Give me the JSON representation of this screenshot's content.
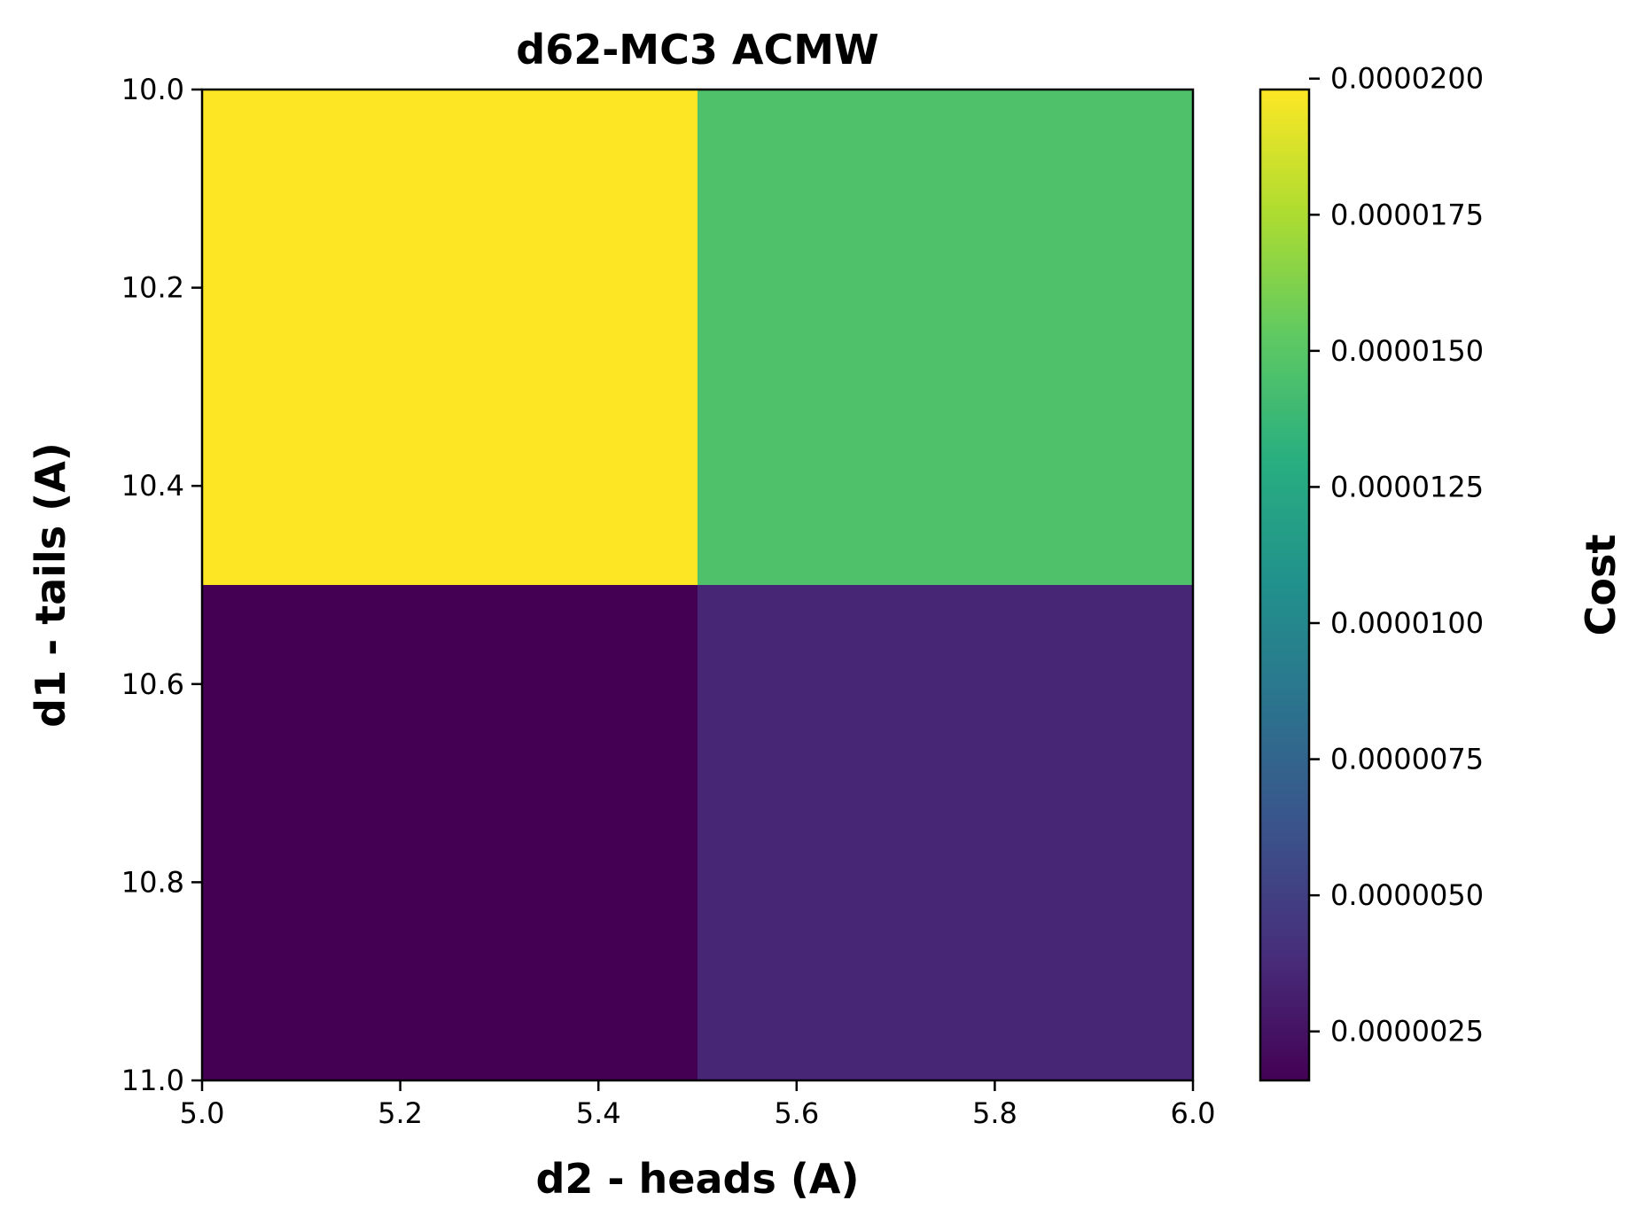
{
  "chart_data": {
    "type": "heatmap",
    "title": "d62-MC3 ACMW",
    "xlabel": "d2 - heads (A)",
    "ylabel": "d1 - tails (A)",
    "xlim": [
      5.0,
      6.0
    ],
    "ylim": [
      10.0,
      11.0
    ],
    "y_inverted": true,
    "x_ticks": [
      "5.0",
      "5.2",
      "5.4",
      "5.6",
      "5.8",
      "6.0"
    ],
    "y_ticks": [
      "10.0",
      "10.2",
      "10.4",
      "10.6",
      "10.8",
      "11.0"
    ],
    "x_bins": [
      [
        5.0,
        5.5
      ],
      [
        5.5,
        6.0
      ]
    ],
    "y_bins": [
      [
        10.0,
        10.5
      ],
      [
        10.5,
        11.0
      ]
    ],
    "values": [
      [
        1.98e-05,
        1.46e-05
      ],
      [
        1.6e-06,
        3.5e-06
      ]
    ],
    "colorbar": {
      "label": "Cost",
      "colormap": "viridis",
      "range": [
        1.6e-06,
        1.98e-05
      ],
      "ticks": [
        2.5e-06,
        5e-06,
        7.5e-06,
        1e-05,
        1.25e-05,
        1.5e-05,
        1.75e-05,
        2e-05
      ],
      "tick_labels": [
        "0.0000025",
        "0.0000050",
        "0.0000075",
        "0.0000100",
        "0.0000125",
        "0.0000150",
        "0.0000175",
        "0.0000200"
      ]
    },
    "grid": false
  }
}
